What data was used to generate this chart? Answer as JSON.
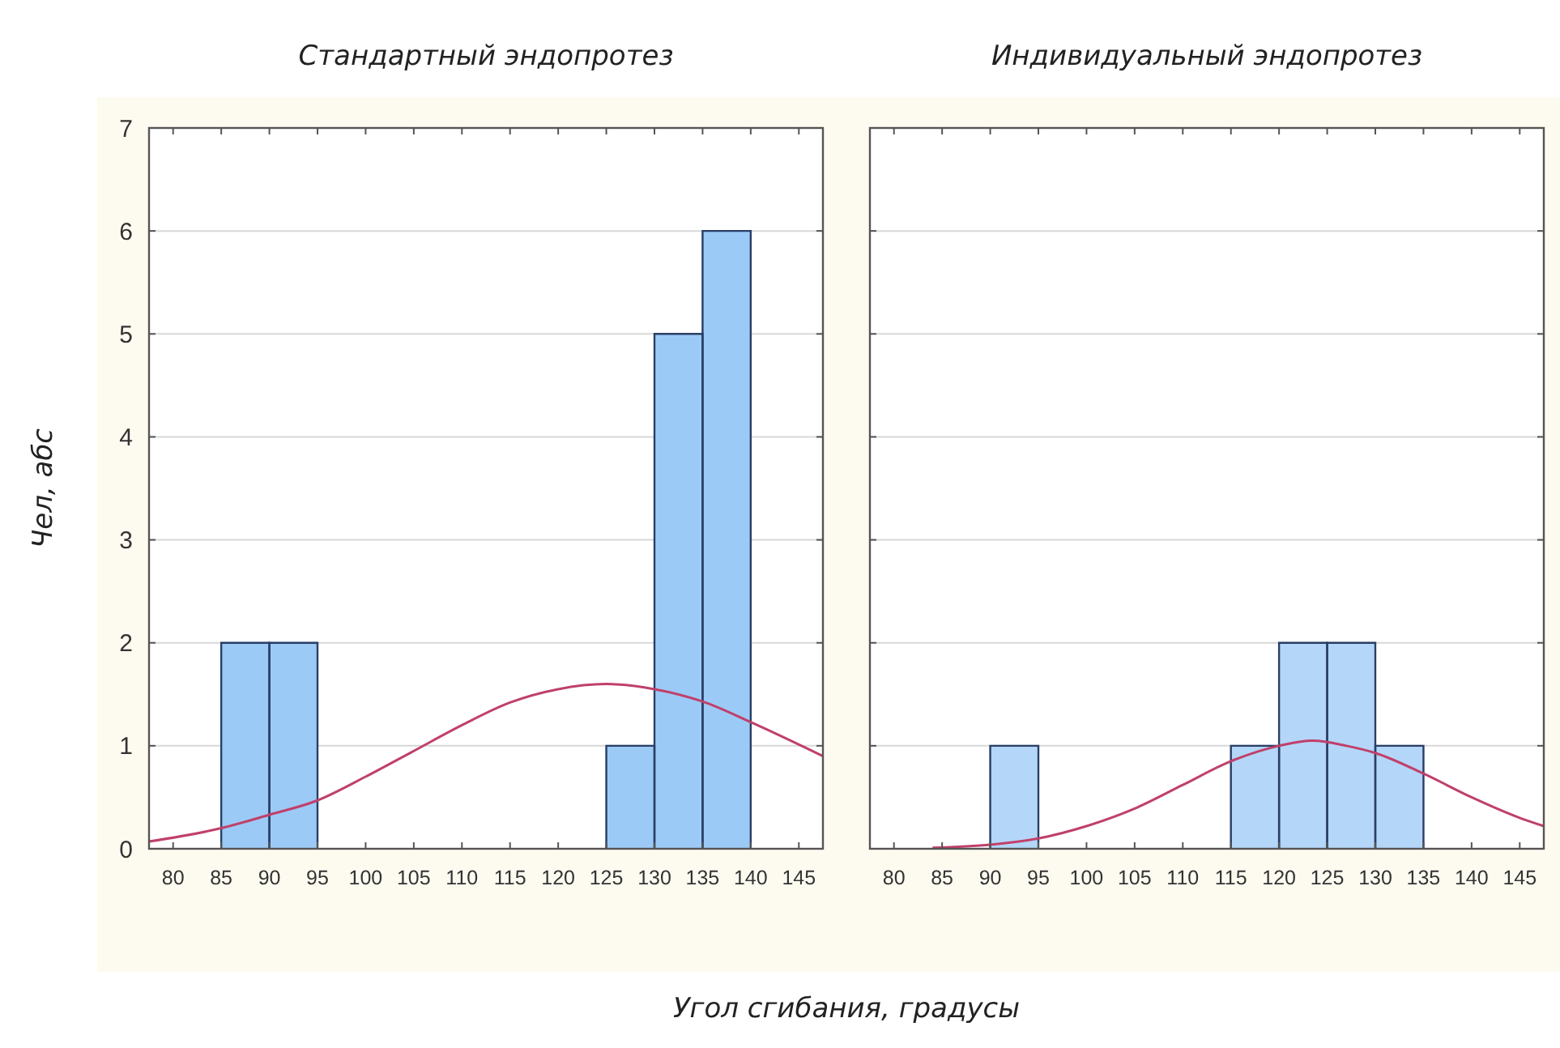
{
  "chart_data": [
    {
      "type": "histogram",
      "title": "Стандартный эндопротез",
      "ylabel": "Чел, абс",
      "xlabel": "Угол сгибания, градусы",
      "xlim": [
        77.5,
        147.5
      ],
      "xticks": [
        80,
        85,
        90,
        95,
        100,
        105,
        110,
        115,
        120,
        125,
        130,
        135,
        140,
        145
      ],
      "ylim": [
        0,
        7
      ],
      "yticks": [
        0,
        1,
        2,
        3,
        4,
        5,
        6,
        7
      ],
      "grid": "y",
      "series": [
        {
          "type": "histogram",
          "color": "#9ccaf6",
          "bins": [
            85,
            90,
            95,
            100,
            105,
            110,
            115,
            120,
            125,
            130,
            135,
            140
          ],
          "values": [
            2,
            2,
            0,
            0,
            0,
            0,
            0,
            0,
            1,
            5,
            6
          ]
        },
        {
          "type": "line",
          "color": "#c0406a",
          "x": [
            77.5,
            85,
            90,
            95,
            100,
            105,
            110,
            115,
            120,
            125,
            130,
            135,
            140,
            147.5
          ],
          "values": [
            0.07,
            0.2,
            0.33,
            0.47,
            0.7,
            0.95,
            1.2,
            1.42,
            1.55,
            1.6,
            1.55,
            1.43,
            1.23,
            0.9
          ]
        }
      ]
    },
    {
      "type": "histogram",
      "title": "Индивидуальный эндопротез",
      "xlim": [
        77.5,
        147.5
      ],
      "xticks": [
        80,
        85,
        90,
        95,
        100,
        105,
        110,
        115,
        120,
        125,
        130,
        135,
        140,
        145
      ],
      "ylim": [
        0,
        7
      ],
      "yticks": [
        0,
        1,
        2,
        3,
        4,
        5,
        6,
        7
      ],
      "grid": "y",
      "tick_labels": "x",
      "series": [
        {
          "type": "histogram",
          "color": "#b4d6f8",
          "bins": [
            90,
            95,
            100,
            105,
            110,
            115,
            120,
            125,
            130,
            135
          ],
          "values": [
            1,
            0,
            0,
            0,
            0,
            1,
            2,
            2,
            1
          ]
        },
        {
          "type": "line",
          "color": "#c0406a",
          "x": [
            84,
            90,
            95,
            100,
            105,
            110,
            115,
            120,
            123.5,
            127,
            130,
            135,
            140,
            145,
            147.5
          ],
          "values": [
            0.01,
            0.04,
            0.1,
            0.22,
            0.39,
            0.62,
            0.85,
            1.0,
            1.05,
            1.0,
            0.93,
            0.73,
            0.5,
            0.3,
            0.22
          ]
        }
      ]
    }
  ]
}
